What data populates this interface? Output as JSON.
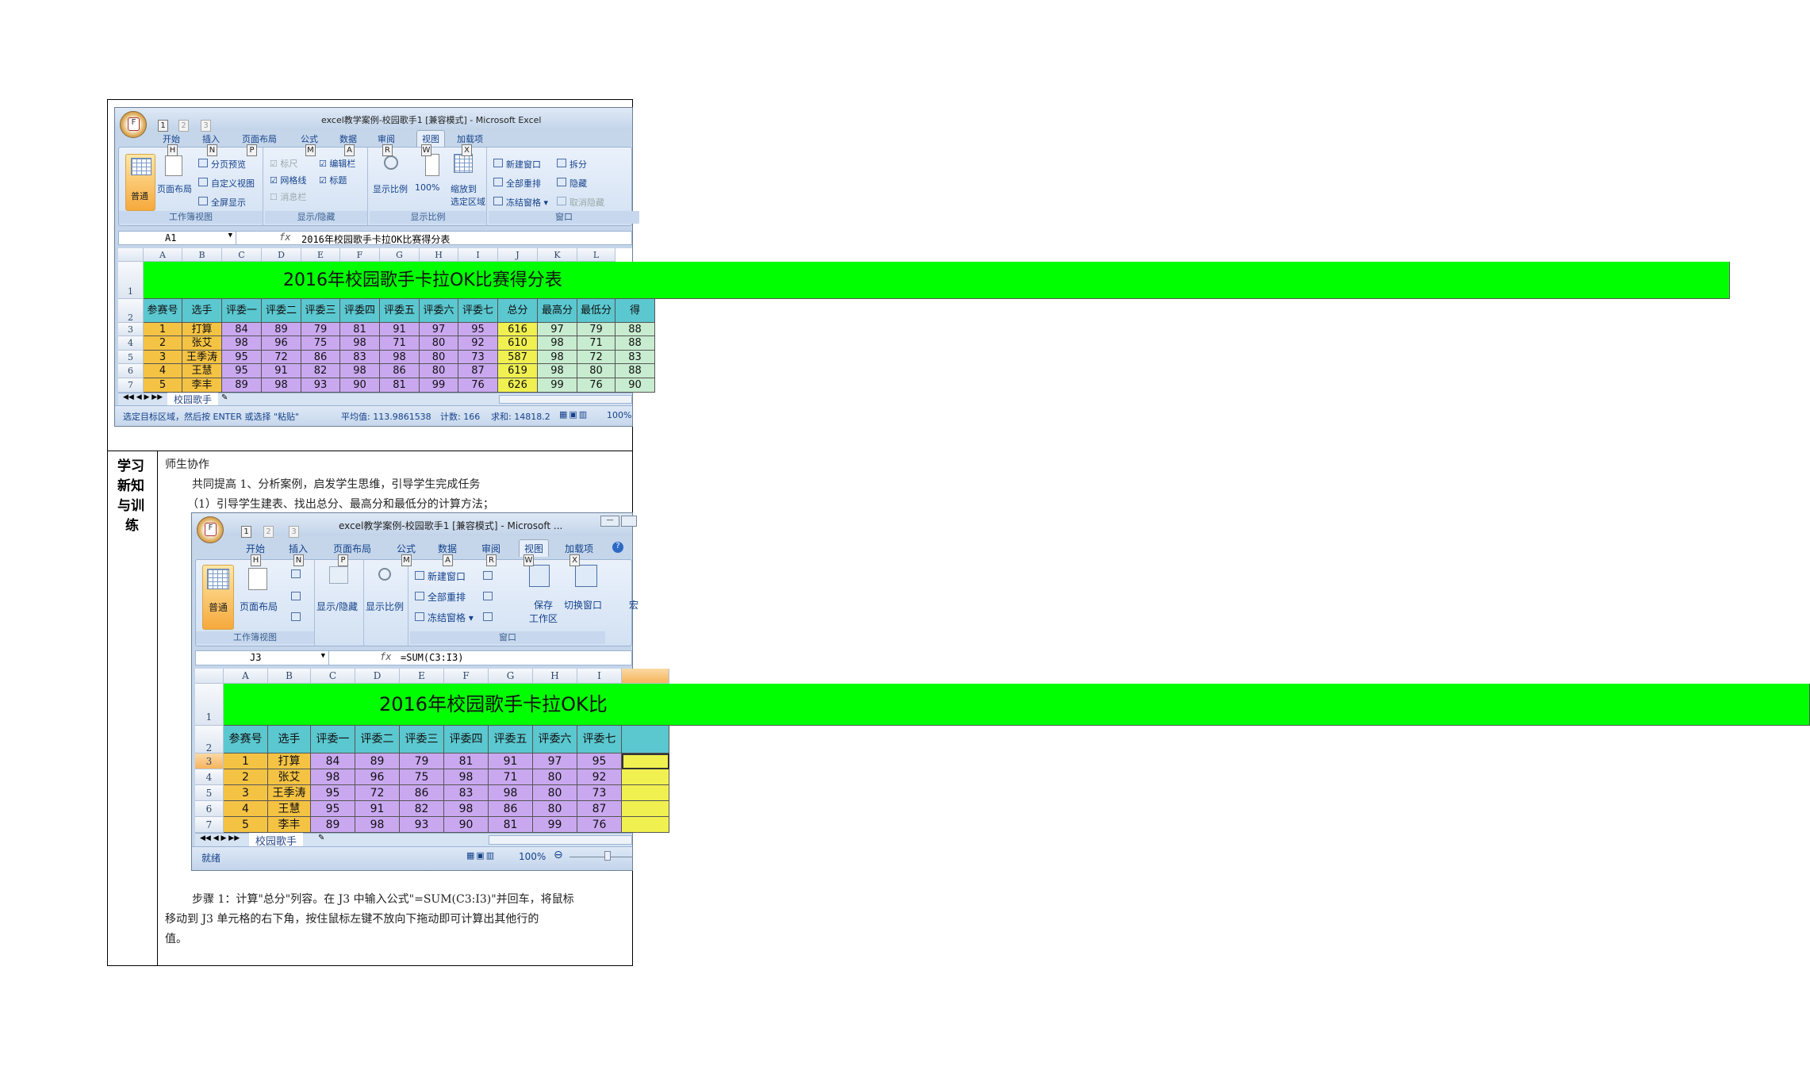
{
  "side_label": [
    "学习",
    "新知",
    "与训",
    "练"
  ],
  "body": {
    "heading": "师生协作",
    "line1": "共同提高 1、分析案例，启发学生思维，引导学生完成任务",
    "line2": "（1）引导学生建表、找出总分、最高分和最低分的计算方法；",
    "step_line1": "步骤 1：计算\"总分\"列容。在 J3 中输入公式\"=SUM(C3:I3)\"并回车，将鼠标",
    "step_line2": "移动到 J3 单元格的右下角，按住鼠标左键不放向下拖动即可计算出其他行的",
    "step_line3": "值。"
  },
  "excel1": {
    "title": "excel教学案例-校园歌手1  [兼容模式] - Microsoft Excel",
    "qat_keys": [
      "1",
      "2",
      "3"
    ],
    "tabs": [
      {
        "label": "开始",
        "key": "H"
      },
      {
        "label": "插入",
        "key": "N"
      },
      {
        "label": "页面布局",
        "key": "P"
      },
      {
        "label": "公式",
        "key": "M"
      },
      {
        "label": "数据",
        "key": "A"
      },
      {
        "label": "审阅",
        "key": "R"
      },
      {
        "label": "视图",
        "key": "W",
        "selected": true
      },
      {
        "label": "加载项",
        "key": "X"
      }
    ],
    "ribbon": {
      "normal": "普通",
      "page_layout": "页面布局",
      "page_break": "分页预览",
      "custom_view": "自定义视图",
      "full_screen": "全屏显示",
      "group_workbook_views": "工作簿视图",
      "ruler": "标尺",
      "formula_bar": "编辑栏",
      "gridlines": "网格线",
      "headings": "标题",
      "message_bar": "消息栏",
      "group_show_hide": "显示/隐藏",
      "zoom": "显示比例",
      "zoom100": "100%",
      "zoom_sel_1": "缩放到",
      "zoom_sel_2": "选定区域",
      "group_zoom": "显示比例",
      "new_window": "新建窗口",
      "arrange_all": "全部重排",
      "freeze": "冻结窗格",
      "split": "拆分",
      "hide": "隐藏",
      "unhide": "取消隐藏",
      "group_window": "窗口"
    },
    "name_box": "A1",
    "formula": "2016年校园歌手卡拉OK比赛得分表",
    "columns": [
      "A",
      "B",
      "C",
      "D",
      "E",
      "F",
      "G",
      "H",
      "I",
      "J",
      "K",
      "L"
    ],
    "row_numbers": [
      "1",
      "2",
      "3",
      "4",
      "5",
      "6",
      "7"
    ],
    "sheet_title": "2016年校园歌手卡拉OK比赛得分表",
    "headers": [
      "参赛号",
      "选手",
      "评委一",
      "评委二",
      "评委三",
      "评委四",
      "评委五",
      "评委六",
      "评委七",
      "总分",
      "最高分",
      "最低分",
      "得"
    ],
    "rows": [
      [
        "1",
        "打算",
        "84",
        "89",
        "79",
        "81",
        "91",
        "97",
        "95",
        "616",
        "97",
        "79",
        "88"
      ],
      [
        "2",
        "张艾",
        "98",
        "96",
        "75",
        "98",
        "71",
        "80",
        "92",
        "610",
        "98",
        "71",
        "88"
      ],
      [
        "3",
        "王季涛",
        "95",
        "72",
        "86",
        "83",
        "98",
        "80",
        "73",
        "587",
        "98",
        "72",
        "83"
      ],
      [
        "4",
        "王慧",
        "95",
        "91",
        "82",
        "98",
        "86",
        "80",
        "87",
        "619",
        "98",
        "80",
        "88"
      ],
      [
        "5",
        "李丰",
        "89",
        "98",
        "93",
        "90",
        "81",
        "99",
        "76",
        "626",
        "99",
        "76",
        "90"
      ]
    ],
    "sheet_tab": "校园歌手",
    "status_msg": "选定目标区域，然后按 ENTER 或选择 \"粘贴\"",
    "average": "平均值: 113.9861538",
    "count": "计数: 166",
    "sum": "求和: 14818.2",
    "zoom_level": "100%"
  },
  "excel2": {
    "title": "excel教学案例-校园歌手1  [兼容模式] - Microsoft ...",
    "qat_keys": [
      "1",
      "2",
      "3"
    ],
    "tabs": [
      {
        "label": "开始",
        "key": "H"
      },
      {
        "label": "插入",
        "key": "N"
      },
      {
        "label": "页面布局",
        "key": "P"
      },
      {
        "label": "公式",
        "key": "M"
      },
      {
        "label": "数据",
        "key": "A"
      },
      {
        "label": "审阅",
        "key": "R"
      },
      {
        "label": "视图",
        "key": "W",
        "selected": true
      },
      {
        "label": "加载项",
        "key": "X"
      }
    ],
    "ribbon": {
      "normal": "普通",
      "page_layout": "页面布局",
      "group_workbook_views": "工作簿视图",
      "show_hide": "显示/隐藏",
      "zoom": "显示比例",
      "new_window": "新建窗口",
      "arrange_all": "全部重排",
      "freeze": "冻结窗格",
      "save_ws_1": "保存",
      "save_ws_2": "工作区",
      "switch_windows": "切换窗口",
      "macros": "宏",
      "group_window": "窗口"
    },
    "name_box": "J3",
    "formula": "=SUM(C3:I3)",
    "columns": [
      "A",
      "B",
      "C",
      "D",
      "E",
      "F",
      "G",
      "H",
      "I"
    ],
    "row_numbers": [
      "1",
      "2",
      "3",
      "4",
      "5",
      "6",
      "7"
    ],
    "sheet_title": "2016年校园歌手卡拉OK比",
    "headers": [
      "参赛号",
      "选手",
      "评委一",
      "评委二",
      "评委三",
      "评委四",
      "评委五",
      "评委六",
      "评委七"
    ],
    "rows": [
      [
        "1",
        "打算",
        "84",
        "89",
        "79",
        "81",
        "91",
        "97",
        "95"
      ],
      [
        "2",
        "张艾",
        "98",
        "96",
        "75",
        "98",
        "71",
        "80",
        "92"
      ],
      [
        "3",
        "王季涛",
        "95",
        "72",
        "86",
        "83",
        "98",
        "80",
        "73"
      ],
      [
        "4",
        "王慧",
        "95",
        "91",
        "82",
        "98",
        "86",
        "80",
        "87"
      ],
      [
        "5",
        "李丰",
        "89",
        "98",
        "93",
        "90",
        "81",
        "99",
        "76"
      ]
    ],
    "sheet_tab": "校园歌手",
    "status_msg": "就绪",
    "zoom_level": "100%"
  },
  "colors": {
    "title_fill": "#00ff00",
    "header_fill": "#5bc8d0",
    "id_fill": "#f5c343",
    "score_fill": "#c9a8f0",
    "total_fill": "#f0f050",
    "stat_fill": "#c8ecd0"
  }
}
